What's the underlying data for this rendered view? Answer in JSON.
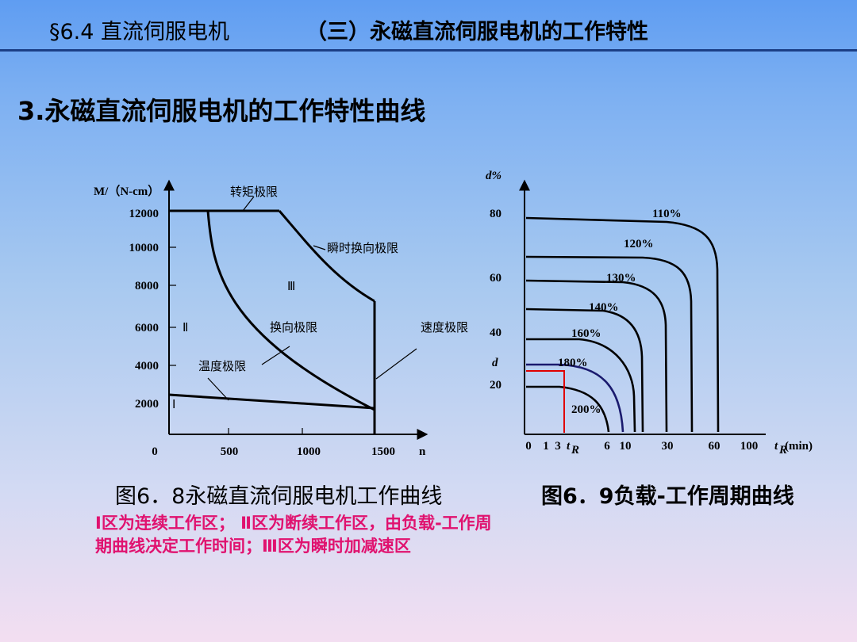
{
  "header": {
    "section": "§6.4 直流伺服电机",
    "subtitle": "（三）永磁直流伺服电机的工作特性"
  },
  "main_title": "3.永磁直流伺服电机的工作特性曲线",
  "figure1": {
    "y_axis_label": "M/（N-cm）",
    "x_axis_label": "n",
    "y_ticks": [
      "12000",
      "10000",
      "8000",
      "6000",
      "4000",
      "2000"
    ],
    "x_ticks": [
      "0",
      "500",
      "1000",
      "1500"
    ],
    "region_labels": [
      "Ⅰ",
      "Ⅱ",
      "Ⅲ"
    ],
    "curve_labels": {
      "torque_limit": "转矩极限",
      "instant_commutation_limit": "瞬时换向极限",
      "commutation_limit": "换向极限",
      "speed_limit": "速度极限",
      "temperature_limit": "温度极限"
    },
    "caption": "图6．8永磁直流伺服电机工作曲线",
    "note": "Ⅰ区为连续工作区； Ⅱ区为断续工作区，由负载-工作周期曲线决定工作时间；Ⅲ区为瞬时加减速区"
  },
  "figure2": {
    "y_axis_label": "d%",
    "y_ticks": [
      "80",
      "60",
      "40",
      "20"
    ],
    "d_marker": "d",
    "x_ticks": [
      "0",
      "1",
      "3",
      "6",
      "10",
      "30",
      "60",
      "100"
    ],
    "tR_marker": "t",
    "tR_sub": "R",
    "x_axis_label": "(min)",
    "curve_labels": [
      "110%",
      "120%",
      "130%",
      "140%",
      "160%",
      "180%",
      "200%"
    ],
    "caption": "图6．9负载-工作周期曲线"
  }
}
